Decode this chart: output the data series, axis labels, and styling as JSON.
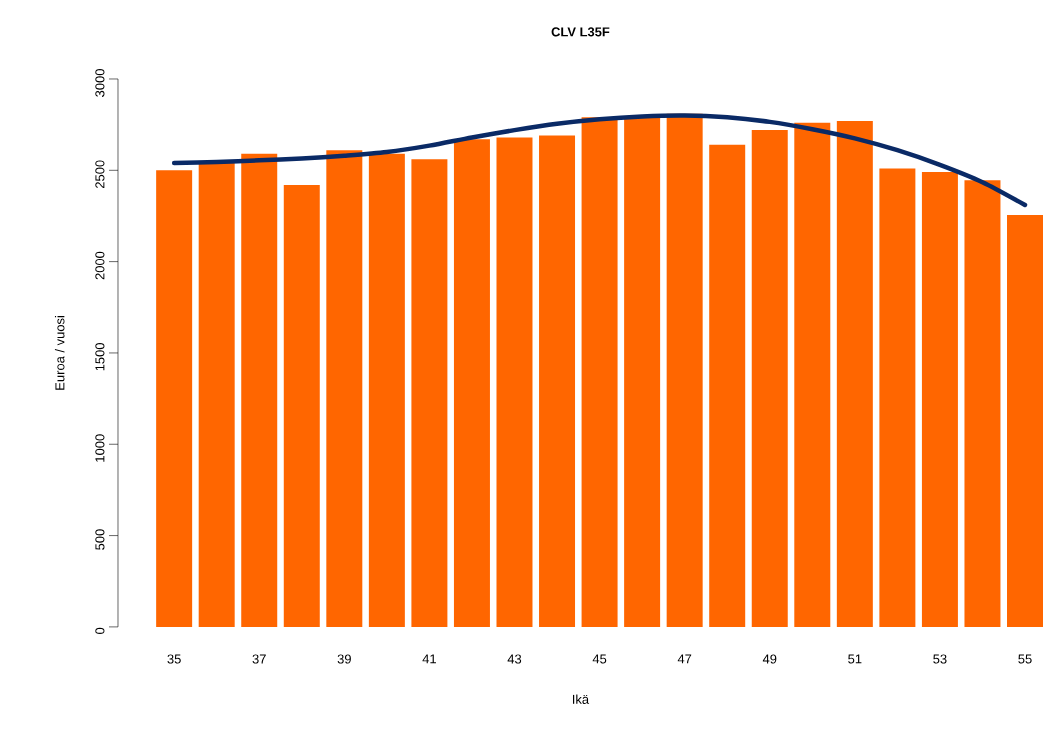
{
  "chart_data": {
    "type": "bar",
    "title": "CLV L35F",
    "xlabel": "Ikä",
    "ylabel": "Euroa / vuosi",
    "categories": [
      "35",
      null,
      "37",
      null,
      "39",
      null,
      "41",
      null,
      "43",
      null,
      "45",
      null,
      "47",
      null,
      "49",
      null,
      "51",
      null,
      "53",
      null,
      "55"
    ],
    "series": [
      {
        "color": "#ff6600",
        "values": [
          2500,
          2540,
          2590,
          2420,
          2610,
          2590,
          2560,
          2670,
          2680,
          2690,
          2790,
          2790,
          2810,
          2640,
          2720,
          2760,
          2770,
          2510,
          2490,
          2445,
          2255
        ]
      },
      {
        "type": "line",
        "color": "#0a2a66",
        "values": [
          2540,
          2545,
          2555,
          2565,
          2580,
          2600,
          2635,
          2680,
          2720,
          2755,
          2780,
          2795,
          2800,
          2790,
          2765,
          2725,
          2675,
          2610,
          2530,
          2435,
          2310
        ]
      }
    ],
    "ylim": [
      0,
      3000
    ],
    "yticks": [
      0,
      500,
      1000,
      1500,
      2000,
      2500,
      3000
    ]
  }
}
